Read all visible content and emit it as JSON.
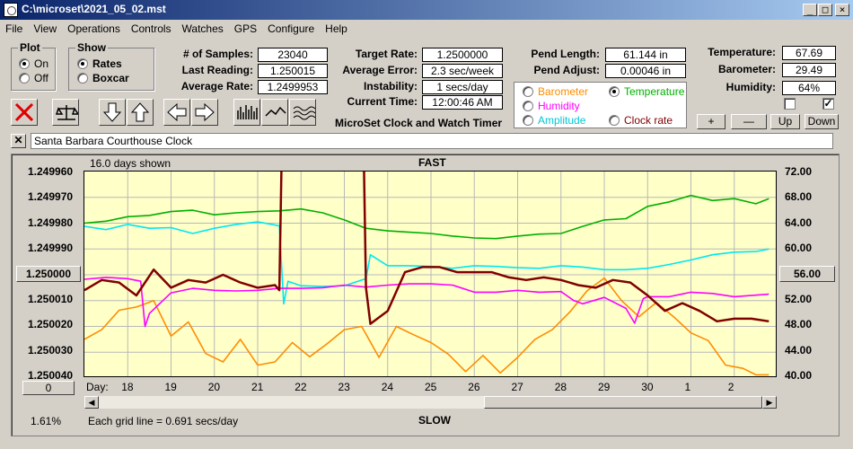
{
  "window": {
    "title": "C:\\microset\\2021_05_02.mst"
  },
  "menu": [
    "File",
    "View",
    "Operations",
    "Controls",
    "Watches",
    "GPS",
    "Configure",
    "Help"
  ],
  "plot_group": {
    "title": "Plot",
    "on": "On",
    "off": "Off",
    "selected": "On"
  },
  "show_group": {
    "title": "Show",
    "rates": "Rates",
    "boxcar": "Boxcar",
    "selected": "Rates"
  },
  "stats": {
    "samples_label": "# of Samples:",
    "samples": "23040",
    "last_label": "Last Reading:",
    "last": "1.250015",
    "avg_label": "Average Rate:",
    "avg": "1.2499953",
    "target_label": "Target Rate:",
    "target": "1.2500000",
    "err_label": "Average Error:",
    "err": "2.3 sec/week",
    "inst_label": "Instability:",
    "inst": "1 secs/day",
    "time_label": "Current Time:",
    "time": "12:00:46 AM",
    "pend_len_label": "Pend Length:",
    "pend_len": "61.144 in",
    "pend_adj_label": "Pend Adjust:",
    "pend_adj": "0.00046 in",
    "temp_label": "Temperature:",
    "temp": "67.69",
    "baro_label": "Barometer:",
    "baro": "29.49",
    "hum_label": "Humidity:",
    "hum": "64%"
  },
  "app_title": "MicroSet Clock and Watch Timer",
  "overlay": {
    "barometer": "Barometer",
    "temperature": "Temperature",
    "humidity": "Humidity",
    "amplitude": "Amplitude",
    "clock_rate": "Clock rate",
    "selected": "Temperature"
  },
  "right_buttons": {
    "plus": "+",
    "minus": "—",
    "up": "Up",
    "down": "Down"
  },
  "checkboxes": {
    "left_checked": false,
    "right_checked": true
  },
  "watch_name": "Santa Barbara Courthouse Clock",
  "chart_header": {
    "days_shown": "16.0 days shown",
    "top": "FAST",
    "bottom": "SLOW"
  },
  "left_box": "1.250000",
  "right_box": "56.00",
  "zero_box": "0",
  "percent": "1.61%",
  "grid_note": "Each grid line = 0.691 secs/day",
  "x_label": "Day:",
  "colors": {
    "clock_rate": "#800000",
    "temperature": "#00b000",
    "humidity": "#ff00ff",
    "amplitude": "#00e8f0",
    "barometer": "#ff8c00",
    "plot_bg": "#ffffc8"
  },
  "chart_data": {
    "type": "line",
    "x_label": "Day:",
    "x_ticks": [
      "18",
      "19",
      "20",
      "21",
      "22",
      "23",
      "24",
      "25",
      "26",
      "27",
      "28",
      "29",
      "30",
      "1",
      "2"
    ],
    "y_left_ticks": [
      "1.249960",
      "1.249970",
      "1.249980",
      "1.249990",
      "1.250000",
      "1.250010",
      "1.250020",
      "1.250030",
      "1.250040"
    ],
    "y_right_ticks": [
      "72.00",
      "68.00",
      "64.00",
      "60.00",
      "56.00",
      "52.00",
      "48.00",
      "44.00",
      "40.00"
    ],
    "ylim_left": [
      1.24996,
      1.25004
    ],
    "ylim_right": [
      40,
      72
    ],
    "y_left_inverted": true,
    "grid": true,
    "series": [
      {
        "name": "Clock rate",
        "axis": "left",
        "color": "#800000",
        "x": [
          17.0,
          17.4,
          17.8,
          18.2,
          18.6,
          19.0,
          19.4,
          19.8,
          20.2,
          20.6,
          21.0,
          21.4,
          21.5,
          21.55,
          21.7,
          22.0,
          22.4,
          22.8,
          23.2,
          23.45,
          23.5,
          23.6,
          24.0,
          24.4,
          24.8,
          25.2,
          25.6,
          26.0,
          26.4,
          26.8,
          27.2,
          27.6,
          28.0,
          28.4,
          28.8,
          29.2,
          29.6,
          30.0,
          30.4,
          30.8,
          31.2,
          31.6,
          32.0,
          32.4,
          32.8
        ],
        "y": [
          1.250006,
          1.250002,
          1.250003,
          1.250008,
          1.249998,
          1.250005,
          1.250002,
          1.250003,
          1.25,
          1.250003,
          1.250005,
          1.250004,
          1.250006,
          1.249958,
          1.249955,
          1.249955,
          1.249955,
          1.249955,
          1.249955,
          1.249955,
          1.250005,
          1.250019,
          1.250014,
          1.249999,
          1.249997,
          1.249997,
          1.249999,
          1.249999,
          1.249999,
          1.250001,
          1.250002,
          1.250001,
          1.250002,
          1.250004,
          1.250005,
          1.250002,
          1.250003,
          1.250008,
          1.250014,
          1.250011,
          1.250014,
          1.250018,
          1.250017,
          1.250017,
          1.250018
        ]
      },
      {
        "name": "Temperature",
        "axis": "right",
        "color": "#00b000",
        "x": [
          17.0,
          17.5,
          18.0,
          18.5,
          19.0,
          19.5,
          20.0,
          20.5,
          21.0,
          21.5,
          22.0,
          22.5,
          23.0,
          23.5,
          24.0,
          24.5,
          25.0,
          25.5,
          26.0,
          26.5,
          27.0,
          27.5,
          28.0,
          28.5,
          29.0,
          29.5,
          30.0,
          30.5,
          31.0,
          31.5,
          32.0,
          32.5,
          32.8
        ],
        "y": [
          64.0,
          64.3,
          65.0,
          65.2,
          65.8,
          66.0,
          65.3,
          65.6,
          65.8,
          65.9,
          66.2,
          65.6,
          64.5,
          63.2,
          62.8,
          62.6,
          62.4,
          62.0,
          61.7,
          61.6,
          62.0,
          62.3,
          62.4,
          63.5,
          64.5,
          64.7,
          66.6,
          67.3,
          68.3,
          67.5,
          67.8,
          67.0,
          67.8
        ]
      },
      {
        "name": "Humidity",
        "axis": "right",
        "color": "#ff00ff",
        "x": [
          17.0,
          17.5,
          18.0,
          18.3,
          18.4,
          18.5,
          19.0,
          19.5,
          20.0,
          20.5,
          21.0,
          21.5,
          22.0,
          22.5,
          23.0,
          23.5,
          24.0,
          24.5,
          25.0,
          25.5,
          26.0,
          26.5,
          27.0,
          27.5,
          28.0,
          28.3,
          28.5,
          29.0,
          29.5,
          29.7,
          29.9,
          30.0,
          30.5,
          31.0,
          31.5,
          32.0,
          32.8
        ],
        "y": [
          55.3,
          55.6,
          55.4,
          55.0,
          48.0,
          50.0,
          53.2,
          53.9,
          53.6,
          53.5,
          53.6,
          53.9,
          53.9,
          54.0,
          54.4,
          54.1,
          54.4,
          54.6,
          54.6,
          54.4,
          53.3,
          53.3,
          53.6,
          53.3,
          53.4,
          52.0,
          51.5,
          52.5,
          50.8,
          48.5,
          52.3,
          52.6,
          52.6,
          53.3,
          53.1,
          52.6,
          53.0
        ]
      },
      {
        "name": "Amplitude",
        "axis": "right",
        "color": "#00e8f0",
        "x": [
          17.0,
          17.5,
          18.0,
          18.5,
          19.0,
          19.5,
          20.0,
          20.5,
          21.0,
          21.5,
          21.6,
          21.7,
          22.0,
          22.5,
          23.0,
          23.5,
          23.6,
          24.0,
          24.5,
          25.0,
          25.5,
          26.0,
          26.5,
          27.0,
          27.5,
          28.0,
          28.5,
          29.0,
          29.5,
          30.0,
          30.5,
          31.0,
          31.5,
          32.0,
          32.5,
          32.8
        ],
        "y": [
          63.5,
          63.0,
          63.8,
          63.2,
          63.3,
          62.4,
          63.2,
          63.8,
          64.2,
          63.6,
          51.5,
          55.0,
          54.3,
          54.2,
          54.3,
          55.4,
          59.1,
          57.4,
          57.4,
          57.3,
          57.0,
          57.4,
          57.3,
          57.1,
          57.0,
          57.4,
          57.2,
          56.8,
          56.8,
          57.0,
          57.6,
          58.3,
          59.1,
          59.5,
          59.6,
          60.0
        ]
      },
      {
        "name": "Barometer",
        "axis": "right",
        "color": "#ff8c00",
        "x": [
          17.0,
          17.4,
          17.8,
          18.2,
          18.6,
          19.0,
          19.4,
          19.8,
          20.2,
          20.6,
          21.0,
          21.4,
          21.8,
          22.2,
          22.6,
          23.0,
          23.4,
          23.8,
          24.2,
          24.6,
          25.0,
          25.4,
          25.8,
          26.2,
          26.6,
          27.0,
          27.4,
          27.8,
          28.2,
          28.6,
          29.0,
          29.4,
          29.8,
          30.2,
          30.6,
          31.0,
          31.4,
          31.8,
          32.2,
          32.5,
          32.8
        ],
        "y": [
          46.0,
          47.5,
          50.5,
          51.0,
          52.0,
          46.5,
          48.7,
          43.8,
          42.5,
          46.0,
          42.0,
          42.5,
          45.5,
          43.3,
          45.3,
          47.5,
          48.0,
          43.2,
          48.0,
          46.7,
          45.5,
          43.7,
          41.0,
          43.5,
          40.8,
          43.2,
          46.0,
          47.5,
          50.2,
          53.5,
          55.5,
          52.0,
          49.5,
          51.7,
          49.5,
          47.0,
          45.8,
          42.0,
          41.5,
          40.5,
          40.5
        ]
      }
    ]
  }
}
